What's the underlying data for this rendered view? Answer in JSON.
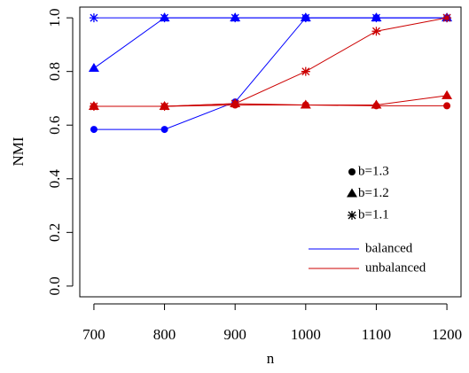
{
  "chart_data": {
    "type": "line",
    "xlabel": "n",
    "ylabel": "NMI",
    "x": [
      700,
      800,
      900,
      1000,
      1100,
      1200
    ],
    "xlim": [
      680,
      1220
    ],
    "xticks": [
      700,
      800,
      900,
      1000,
      1100,
      1200
    ],
    "ylim": [
      -0.04,
      1.04
    ],
    "yticks": [
      {
        "value": 0,
        "label": "0.0"
      },
      0.2,
      0.4,
      0.6,
      0.8,
      {
        "value": 1,
        "label": "1.0"
      }
    ],
    "markers": [
      {
        "label": "b=1.3",
        "shape": "circle"
      },
      {
        "label": "b=1.2",
        "shape": "triangle"
      },
      {
        "label": "b=1.1",
        "shape": "star"
      }
    ],
    "groups": [
      {
        "name": "balanced",
        "color": "#0000ff",
        "series": [
          {
            "shape": "circle",
            "values": [
              0.584,
              0.584,
              0.686,
              1.0,
              1.0,
              1.0
            ]
          },
          {
            "shape": "triangle",
            "values": [
              0.812,
              1.0,
              1.0,
              1.0,
              1.0,
              1.0
            ]
          },
          {
            "shape": "star",
            "values": [
              1.0,
              1.0,
              1.0,
              1.0,
              1.0,
              1.0
            ]
          }
        ]
      },
      {
        "name": "unbalanced",
        "color": "#cc0000",
        "series": [
          {
            "shape": "circle",
            "values": [
              0.67,
              0.67,
              0.675,
              0.675,
              0.672,
              0.672
            ]
          },
          {
            "shape": "triangle",
            "values": [
              0.67,
              0.67,
              0.68,
              0.675,
              0.675,
              0.71
            ]
          },
          {
            "shape": "star",
            "values": [
              0.67,
              0.67,
              0.68,
              0.8,
              0.95,
              1.0
            ]
          }
        ]
      }
    ]
  }
}
